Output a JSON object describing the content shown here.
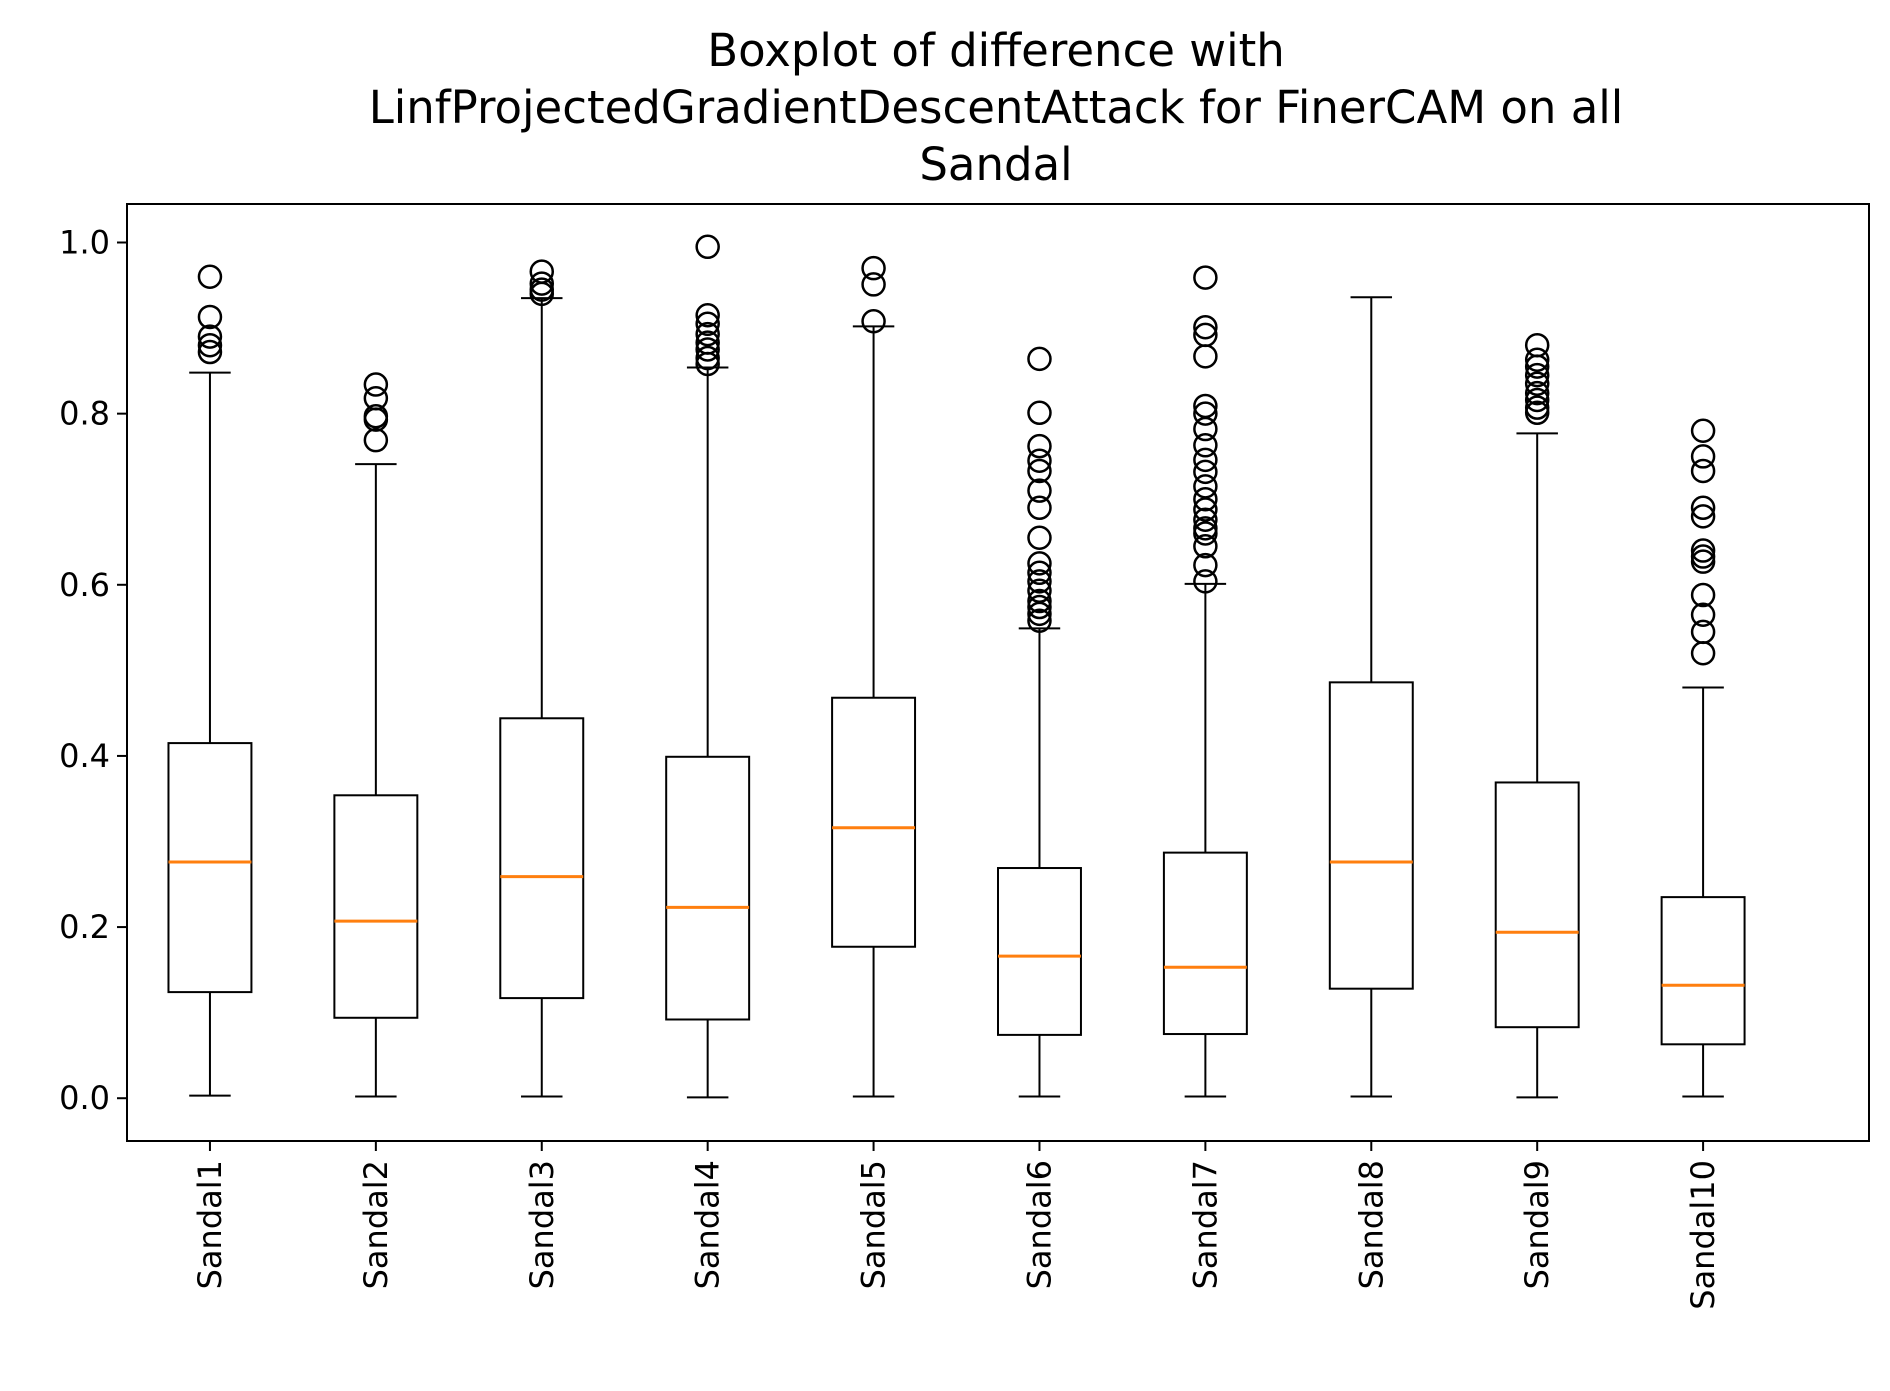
{
  "chart_data": {
    "type": "boxplot",
    "title_lines": [
      "Boxplot of difference with",
      "LinfProjectedGradientDescentAttack for FinerCAM on all",
      "Sandal"
    ],
    "xlabel": "",
    "ylabel": "",
    "ylim": [
      -0.05,
      1.045
    ],
    "yticks": [
      {
        "value": 0.0,
        "label": "0.0"
      },
      {
        "value": 0.2,
        "label": "0.2"
      },
      {
        "value": 0.4,
        "label": "0.4"
      },
      {
        "value": 0.6,
        "label": "0.6"
      },
      {
        "value": 0.8,
        "label": "0.8"
      },
      {
        "value": 1.0,
        "label": "1.0"
      }
    ],
    "grid": false,
    "colors": {
      "box": "#000000",
      "median": "#ff7f0e",
      "flier": "#000000"
    },
    "categories": [
      "Sandal1",
      "Sandal2",
      "Sandal3",
      "Sandal4",
      "Sandal5",
      "Sandal6",
      "Sandal7",
      "Sandal8",
      "Sandal9",
      "Sandal10"
    ],
    "boxes": [
      {
        "name": "Sandal1",
        "whislo": 0.003,
        "q1": 0.124,
        "med": 0.276,
        "q3": 0.415,
        "whishi": 0.848,
        "fliers": [
          0.96,
          0.913,
          0.89,
          0.88,
          0.872
        ]
      },
      {
        "name": "Sandal2",
        "whislo": 0.002,
        "q1": 0.094,
        "med": 0.207,
        "q3": 0.354,
        "whishi": 0.741,
        "fliers": [
          0.834,
          0.818,
          0.797,
          0.793,
          0.769
        ]
      },
      {
        "name": "Sandal3",
        "whislo": 0.002,
        "q1": 0.117,
        "med": 0.259,
        "q3": 0.444,
        "whishi": 0.935,
        "fliers": [
          0.966,
          0.952,
          0.945,
          0.94
        ]
      },
      {
        "name": "Sandal4",
        "whislo": 0.001,
        "q1": 0.092,
        "med": 0.223,
        "q3": 0.399,
        "whishi": 0.854,
        "fliers": [
          0.995,
          0.915,
          0.905,
          0.893,
          0.883,
          0.875,
          0.865,
          0.858
        ]
      },
      {
        "name": "Sandal5",
        "whislo": 0.002,
        "q1": 0.177,
        "med": 0.316,
        "q3": 0.468,
        "whishi": 0.902,
        "fliers": [
          0.97,
          0.951,
          0.908
        ]
      },
      {
        "name": "Sandal6",
        "whislo": 0.002,
        "q1": 0.074,
        "med": 0.166,
        "q3": 0.269,
        "whishi": 0.549,
        "fliers": [
          0.864,
          0.801,
          0.762,
          0.745,
          0.733,
          0.71,
          0.69,
          0.655,
          0.625,
          0.614,
          0.604,
          0.593,
          0.581,
          0.574,
          0.566,
          0.558
        ]
      },
      {
        "name": "Sandal7",
        "whislo": 0.002,
        "q1": 0.075,
        "med": 0.153,
        "q3": 0.287,
        "whishi": 0.601,
        "fliers": [
          0.959,
          0.901,
          0.892,
          0.867,
          0.809,
          0.8,
          0.782,
          0.763,
          0.746,
          0.732,
          0.715,
          0.7,
          0.688,
          0.676,
          0.666,
          0.66,
          0.645,
          0.623,
          0.604
        ]
      },
      {
        "name": "Sandal8",
        "whislo": 0.002,
        "q1": 0.128,
        "med": 0.276,
        "q3": 0.486,
        "whishi": 0.936,
        "fliers": []
      },
      {
        "name": "Sandal9",
        "whislo": 0.001,
        "q1": 0.083,
        "med": 0.194,
        "q3": 0.369,
        "whishi": 0.777,
        "fliers": [
          0.88,
          0.863,
          0.855,
          0.845,
          0.835,
          0.824,
          0.816,
          0.807,
          0.801
        ]
      },
      {
        "name": "Sandal10",
        "whislo": 0.002,
        "q1": 0.063,
        "med": 0.132,
        "q3": 0.235,
        "whishi": 0.48,
        "fliers": [
          0.78,
          0.75,
          0.733,
          0.69,
          0.68,
          0.64,
          0.633,
          0.627,
          0.588,
          0.565,
          0.545,
          0.52
        ]
      }
    ]
  }
}
